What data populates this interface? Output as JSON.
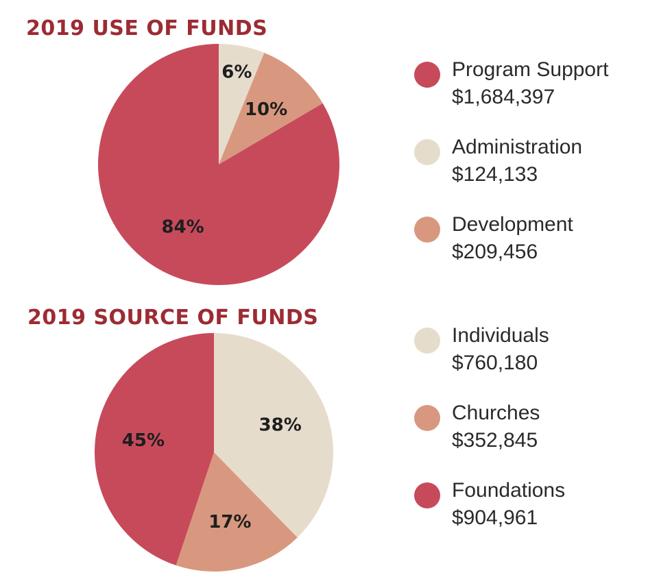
{
  "colors": {
    "title": "#9c2b33",
    "red": "#c74a5b",
    "beige": "#e6dccc",
    "salmon": "#d8987f",
    "text": "#2a2a2a"
  },
  "chart_data": [
    {
      "type": "pie",
      "title": "2019 USE OF FUNDS",
      "start_angle_deg": 0,
      "direction": "clockwise",
      "slices": [
        {
          "label": "Administration",
          "amount": "$124,133",
          "value": 124133,
          "percent_label": "6%",
          "color": "#e6dccc"
        },
        {
          "label": "Development",
          "amount": "$209,456",
          "value": 209456,
          "percent_label": "10%",
          "color": "#d8987f"
        },
        {
          "label": "Program Support",
          "amount": "$1,684,397",
          "value": 1684397,
          "percent_label": "84%",
          "color": "#c74a5b"
        }
      ],
      "legend": [
        {
          "label": "Program Support",
          "amount": "$1,684,397",
          "color": "#c74a5b"
        },
        {
          "label": "Administration",
          "amount": "$124,133",
          "color": "#e6dccc"
        },
        {
          "label": "Development",
          "amount": "$209,456",
          "color": "#d8987f"
        }
      ],
      "legend_placement": "right"
    },
    {
      "type": "pie",
      "title": "2019 SOURCE OF FUNDS",
      "start_angle_deg": 0,
      "direction": "clockwise",
      "slices": [
        {
          "label": "Individuals",
          "amount": "$760,180",
          "value": 760180,
          "percent_label": "38%",
          "color": "#e6dccc"
        },
        {
          "label": "Churches",
          "amount": "$352,845",
          "value": 352845,
          "percent_label": "17%",
          "color": "#d8987f"
        },
        {
          "label": "Foundations",
          "amount": "$904,961",
          "value": 904961,
          "percent_label": "45%",
          "color": "#c74a5b"
        }
      ],
      "legend": [
        {
          "label": "Individuals",
          "amount": "$760,180",
          "color": "#e6dccc"
        },
        {
          "label": "Churches",
          "amount": "$352,845",
          "color": "#d8987f"
        },
        {
          "label": "Foundations",
          "amount": "$904,961",
          "color": "#c74a5b"
        }
      ],
      "legend_placement": "right"
    }
  ]
}
